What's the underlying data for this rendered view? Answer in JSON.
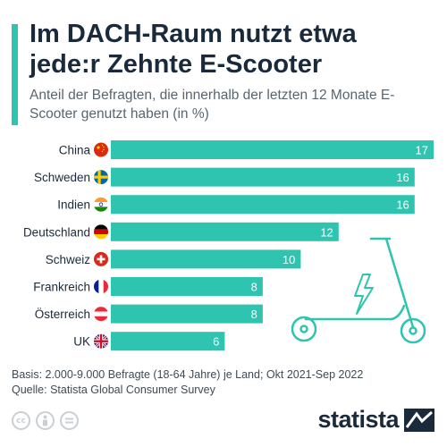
{
  "header": {
    "title": "Im DACH-Raum nutzt etwa jede:r Zehnte E-Scooter",
    "subtitle": "Anteil der Befragten, die innerhalb der letzten 12 Monate E-Scooter genutzt haben (in %)"
  },
  "colors": {
    "accent": "#2ec4b0",
    "bar": "#2ec4b0",
    "text": "#1b2a3b",
    "muted": "#58656f"
  },
  "chart_data": {
    "type": "bar",
    "orientation": "horizontal",
    "categories": [
      "China",
      "Schweden",
      "Indien",
      "Deutschland",
      "Schweiz",
      "Frankreich",
      "Österreich",
      "UK"
    ],
    "values": [
      17,
      16,
      16,
      12,
      10,
      8,
      8,
      6
    ],
    "flags": [
      "china-flag-icon",
      "sweden-flag-icon",
      "india-flag-icon",
      "germany-flag-icon",
      "switzerland-flag-icon",
      "france-flag-icon",
      "austria-flag-icon",
      "uk-flag-icon"
    ],
    "xlim": [
      0,
      17
    ],
    "grid": false,
    "legend": "none",
    "data_labels": "inside-end"
  },
  "footer": {
    "basis": "Basis: 2.000-9.000 Befragte (18-64 Jahre) je Land; Okt 2021-Sep 2022",
    "source": "Quelle: Statista Global Consumer Survey"
  },
  "license_icons": [
    "cc-icon",
    "attribution-icon",
    "no-derivatives-icon"
  ],
  "brand": {
    "name": "statista"
  }
}
